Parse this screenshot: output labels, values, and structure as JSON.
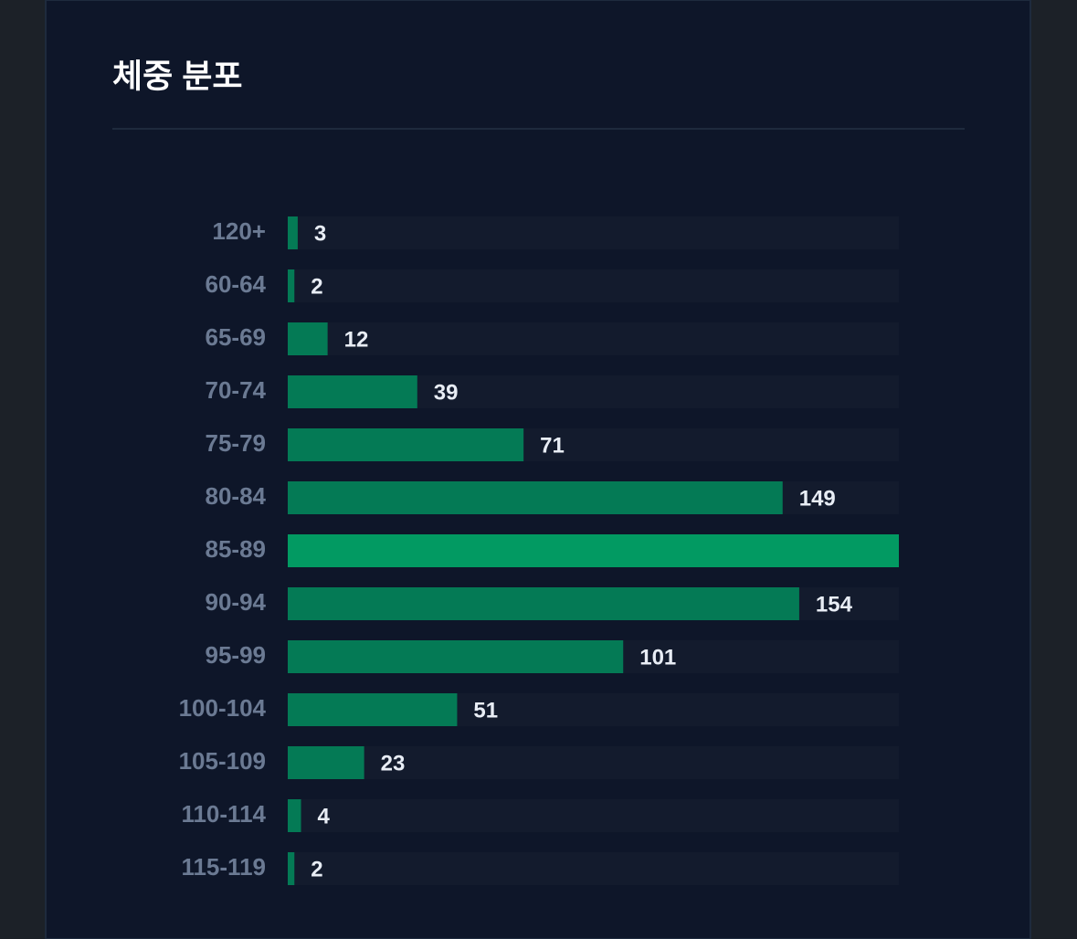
{
  "chart_data": {
    "type": "hbar",
    "title": "체중 분포",
    "categories": [
      "120+",
      "60-64",
      "65-69",
      "70-74",
      "75-79",
      "80-84",
      "85-89",
      "90-94",
      "95-99",
      "100-104",
      "105-109",
      "110-114",
      "115-119"
    ],
    "values": [
      3,
      2,
      12,
      39,
      71,
      149,
      184,
      154,
      101,
      51,
      23,
      4,
      2
    ],
    "value_labels": [
      "3",
      "2",
      "12",
      "39",
      "71",
      "149",
      null,
      "154",
      "101",
      "51",
      "23",
      "4",
      "2"
    ],
    "colors": [
      "#047a55",
      "#047a55",
      "#047a55",
      "#047a55",
      "#047a55",
      "#047a55",
      "#029a62",
      "#047a55",
      "#047a55",
      "#047a55",
      "#047a55",
      "#047a55",
      "#047a55"
    ],
    "track_color": "#131b2d",
    "xlim": [
      0,
      184
    ]
  }
}
